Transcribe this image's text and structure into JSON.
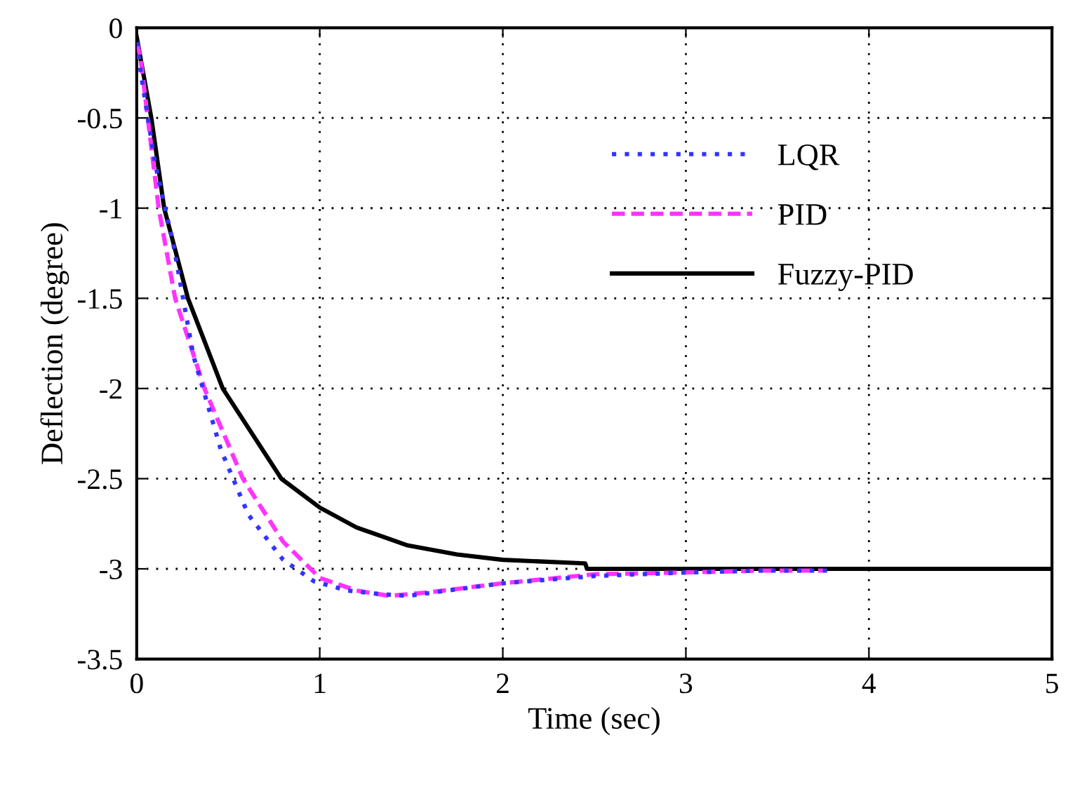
{
  "chart_data": {
    "type": "line",
    "xlabel": "Time (sec)",
    "ylabel": "Deflection (degree)",
    "xlim": [
      0,
      5
    ],
    "ylim": [
      -3.5,
      0
    ],
    "xticks": [
      0,
      1,
      2,
      3,
      4,
      5
    ],
    "yticks": [
      -3.5,
      -3,
      -2.5,
      -2,
      -1.5,
      -1,
      -0.5,
      0
    ],
    "grid": true,
    "legend": "right",
    "series": [
      {
        "name": "LQR",
        "color": "#3333ff",
        "line_style": "dotted",
        "x": [
          0,
          0.03,
          0.1,
          0.2,
          0.31,
          0.46,
          0.61,
          0.8,
          0.97,
          1.15,
          1.33,
          1.48,
          1.7,
          2.0,
          2.5,
          3.0,
          3.4,
          3.8
        ],
        "values": [
          -0.08,
          -0.3,
          -0.75,
          -1.2,
          -1.82,
          -2.34,
          -2.7,
          -2.95,
          -3.07,
          -3.12,
          -3.14,
          -3.15,
          -3.12,
          -3.08,
          -3.04,
          -3.02,
          -3.01,
          -3.01
        ]
      },
      {
        "name": "PID",
        "color": "#ff33ff",
        "line_style": "dashed",
        "x": [
          0,
          0.02,
          0.12,
          0.21,
          0.37,
          0.58,
          0.8,
          1.0,
          1.2,
          1.38,
          1.6,
          2.0,
          2.5,
          3.0,
          3.4,
          3.75
        ],
        "values": [
          -0.08,
          -0.16,
          -1.0,
          -1.5,
          -2.0,
          -2.5,
          -2.85,
          -3.05,
          -3.12,
          -3.15,
          -3.13,
          -3.08,
          -3.03,
          -3.02,
          -3.01,
          -3.01
        ]
      },
      {
        "name": "Fuzzy-PID",
        "color": "#000000",
        "line_style": "solid",
        "x": [
          0,
          0.08,
          0.15,
          0.28,
          0.47,
          0.79,
          1.0,
          1.2,
          1.48,
          1.75,
          2.0,
          2.45,
          2.46,
          3.0,
          4.0,
          5.0
        ],
        "values": [
          -0.05,
          -0.5,
          -1.0,
          -1.5,
          -2.0,
          -2.5,
          -2.66,
          -2.77,
          -2.87,
          -2.92,
          -2.95,
          -2.97,
          -3.0,
          -3.0,
          -3.0,
          -3.0
        ]
      }
    ]
  }
}
